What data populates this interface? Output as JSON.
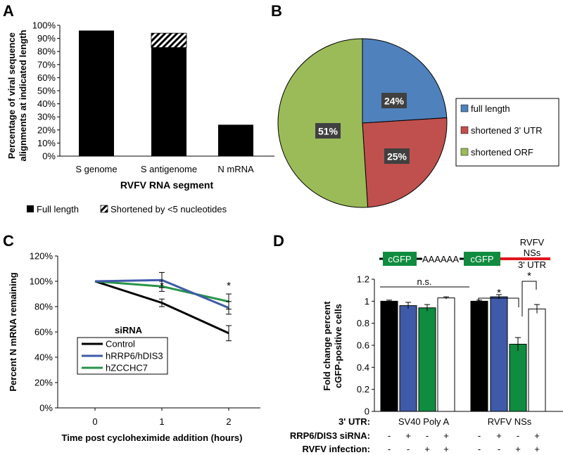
{
  "panels": {
    "A": {
      "letter": "A",
      "ylabel_line1": "Percentage of viral sequence",
      "ylabel_line2": "alignments at indicated length",
      "xlabel": "RVFV RNA segment",
      "legend": [
        "Full length",
        "Shortened by <5 nucleotides"
      ],
      "yticks": [
        "0%",
        "10%",
        "20%",
        "30%",
        "40%",
        "50%",
        "60%",
        "70%",
        "80%",
        "90%",
        "100%"
      ]
    },
    "B": {
      "letter": "B"
    },
    "C": {
      "letter": "C",
      "ylabel": "Percent N mRNA remaining",
      "xlabel": "Time post cycloheximide addition (hours)",
      "yticks": [
        "0%",
        "20%",
        "40%",
        "60%",
        "80%",
        "100%",
        "120%"
      ],
      "legend_title": "siRNA",
      "asterisks": [
        "*",
        "*"
      ]
    },
    "D": {
      "letter": "D",
      "ylabel_line1": "Fold change percent",
      "ylabel_line2": "cGFP-positive cells",
      "yticks": [
        "0",
        "0.2",
        "0.4",
        "0.6",
        "0.8",
        "1",
        "1.2"
      ],
      "construct1": {
        "box": "cGFP",
        "tail": "AAAAAA"
      },
      "construct2": {
        "box": "cGFP",
        "label1": "RVFV",
        "label2": "NSs",
        "label3": "3' UTR"
      },
      "ns_label": "n.s.",
      "asterisks": [
        "*",
        "*"
      ],
      "row_labels": [
        "3' UTR:",
        "RRP6/DIS3 siRNA:",
        "RVFV infection:"
      ],
      "utr_groups": [
        "SV40 Poly A",
        "RVFV NSs"
      ],
      "sirna_signs": [
        "-",
        "+",
        "-",
        "+",
        "-",
        "+",
        "-",
        "+"
      ],
      "infection_signs": [
        "-",
        "-",
        "+",
        "+",
        "-",
        "-",
        "+",
        "+"
      ]
    }
  },
  "chart_data": [
    {
      "panel": "A",
      "type": "bar",
      "stacked": true,
      "categories": [
        "S genome",
        "S antigenome",
        "N mRNA"
      ],
      "series": [
        {
          "name": "Full length",
          "values": [
            96,
            83,
            24
          ],
          "color": "#000000"
        },
        {
          "name": "Shortened by <5 nucleotides",
          "values": [
            0,
            11,
            0
          ],
          "pattern": "diagonal-hatch"
        }
      ],
      "xlabel": "RVFV RNA segment",
      "ylabel": "Percentage of viral sequence alignments at indicated length",
      "ylim": [
        0,
        100
      ]
    },
    {
      "panel": "B",
      "type": "pie",
      "slices": [
        {
          "label": "full length",
          "value": 24,
          "text": "24%",
          "color": "#4F81BD"
        },
        {
          "label": "shortened 3' UTR",
          "value": 25,
          "text": "25%",
          "color": "#C0504D"
        },
        {
          "label": "shortened ORF",
          "value": 51,
          "text": "51%",
          "color": "#9BBB59"
        }
      ]
    },
    {
      "panel": "C",
      "type": "line",
      "x": [
        0,
        1,
        2
      ],
      "xticks": [
        "0",
        "1",
        "2"
      ],
      "series": [
        {
          "name": "Control",
          "values": [
            100,
            83,
            59
          ],
          "errors": [
            0,
            3,
            6
          ],
          "color": "#000000"
        },
        {
          "name": "hRRP6/hDIS3",
          "values": [
            100,
            101,
            79
          ],
          "errors": [
            0,
            6,
            5
          ],
          "color": "#3F5AA8"
        },
        {
          "name": "hZCCHC7",
          "values": [
            100,
            96,
            84
          ],
          "errors": [
            0,
            4,
            6
          ],
          "color": "#27944A"
        }
      ],
      "ylim": [
        0,
        120
      ],
      "xlabel": "Time post cycloheximide addition (hours)",
      "ylabel": "Percent N mRNA remaining"
    },
    {
      "panel": "D",
      "type": "bar",
      "groups": [
        "SV40 Poly A",
        "RVFV NSs"
      ],
      "values": [
        1.0,
        0.96,
        0.94,
        1.03,
        1.0,
        1.04,
        0.61,
        0.93
      ],
      "errors": [
        0.01,
        0.03,
        0.03,
        0.01,
        0.01,
        0.02,
        0.06,
        0.04
      ],
      "colors": [
        "#000000",
        "#3F5AA8",
        "#0F8C3F",
        "#FFFFFF",
        "#000000",
        "#3F5AA8",
        "#0F8C3F",
        "#FFFFFF"
      ],
      "ylim": [
        0,
        1.2
      ],
      "ylabel": "Fold change percent cGFP-positive cells"
    }
  ]
}
